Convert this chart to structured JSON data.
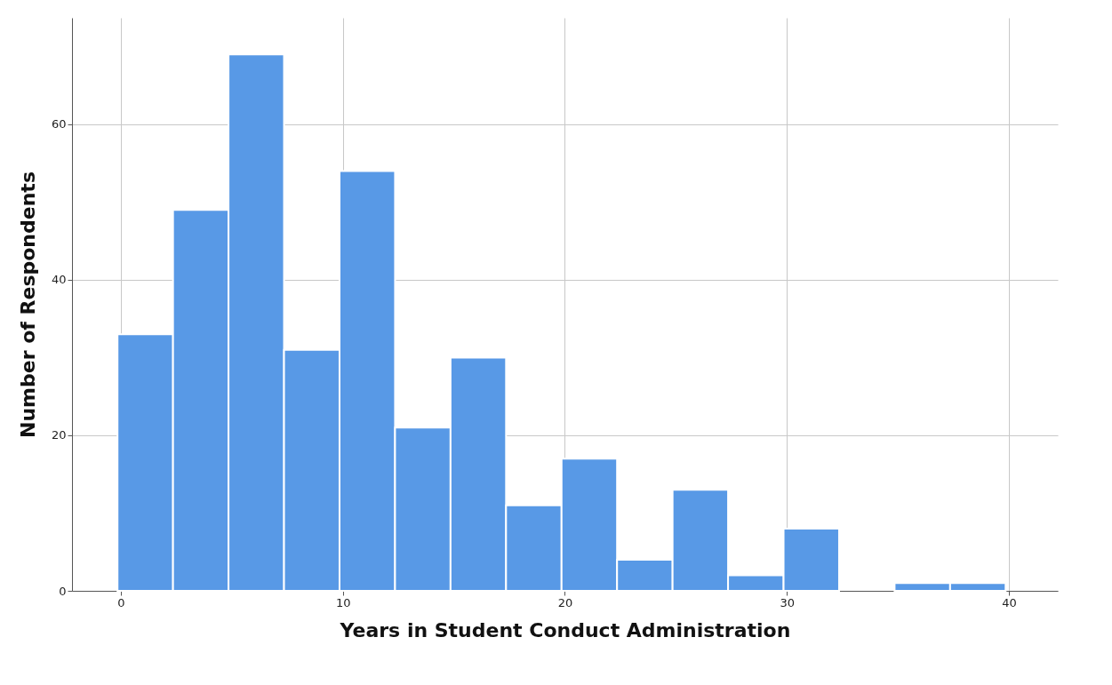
{
  "chart_data": {
    "type": "histogram",
    "xlabel": "Years in Student Conduct Administration",
    "ylabel": "Number of Respondents",
    "bins": [
      -0.15,
      2.35,
      4.85,
      7.35,
      9.85,
      12.35,
      14.85,
      17.35,
      19.85,
      22.35,
      24.85,
      27.35,
      29.85,
      32.35,
      34.85,
      37.35,
      39.85
    ],
    "values": [
      33,
      49,
      69,
      31,
      54,
      21,
      30,
      11,
      17,
      4,
      13,
      2,
      8,
      0,
      1,
      1
    ],
    "color": "#5899e6",
    "xlim": [
      -2.2,
      42.2
    ],
    "xticks": [
      0,
      10,
      20,
      30,
      40
    ],
    "ylim": [
      0,
      73.7
    ],
    "yticks": [
      0,
      20,
      40,
      60
    ],
    "grid": true
  }
}
